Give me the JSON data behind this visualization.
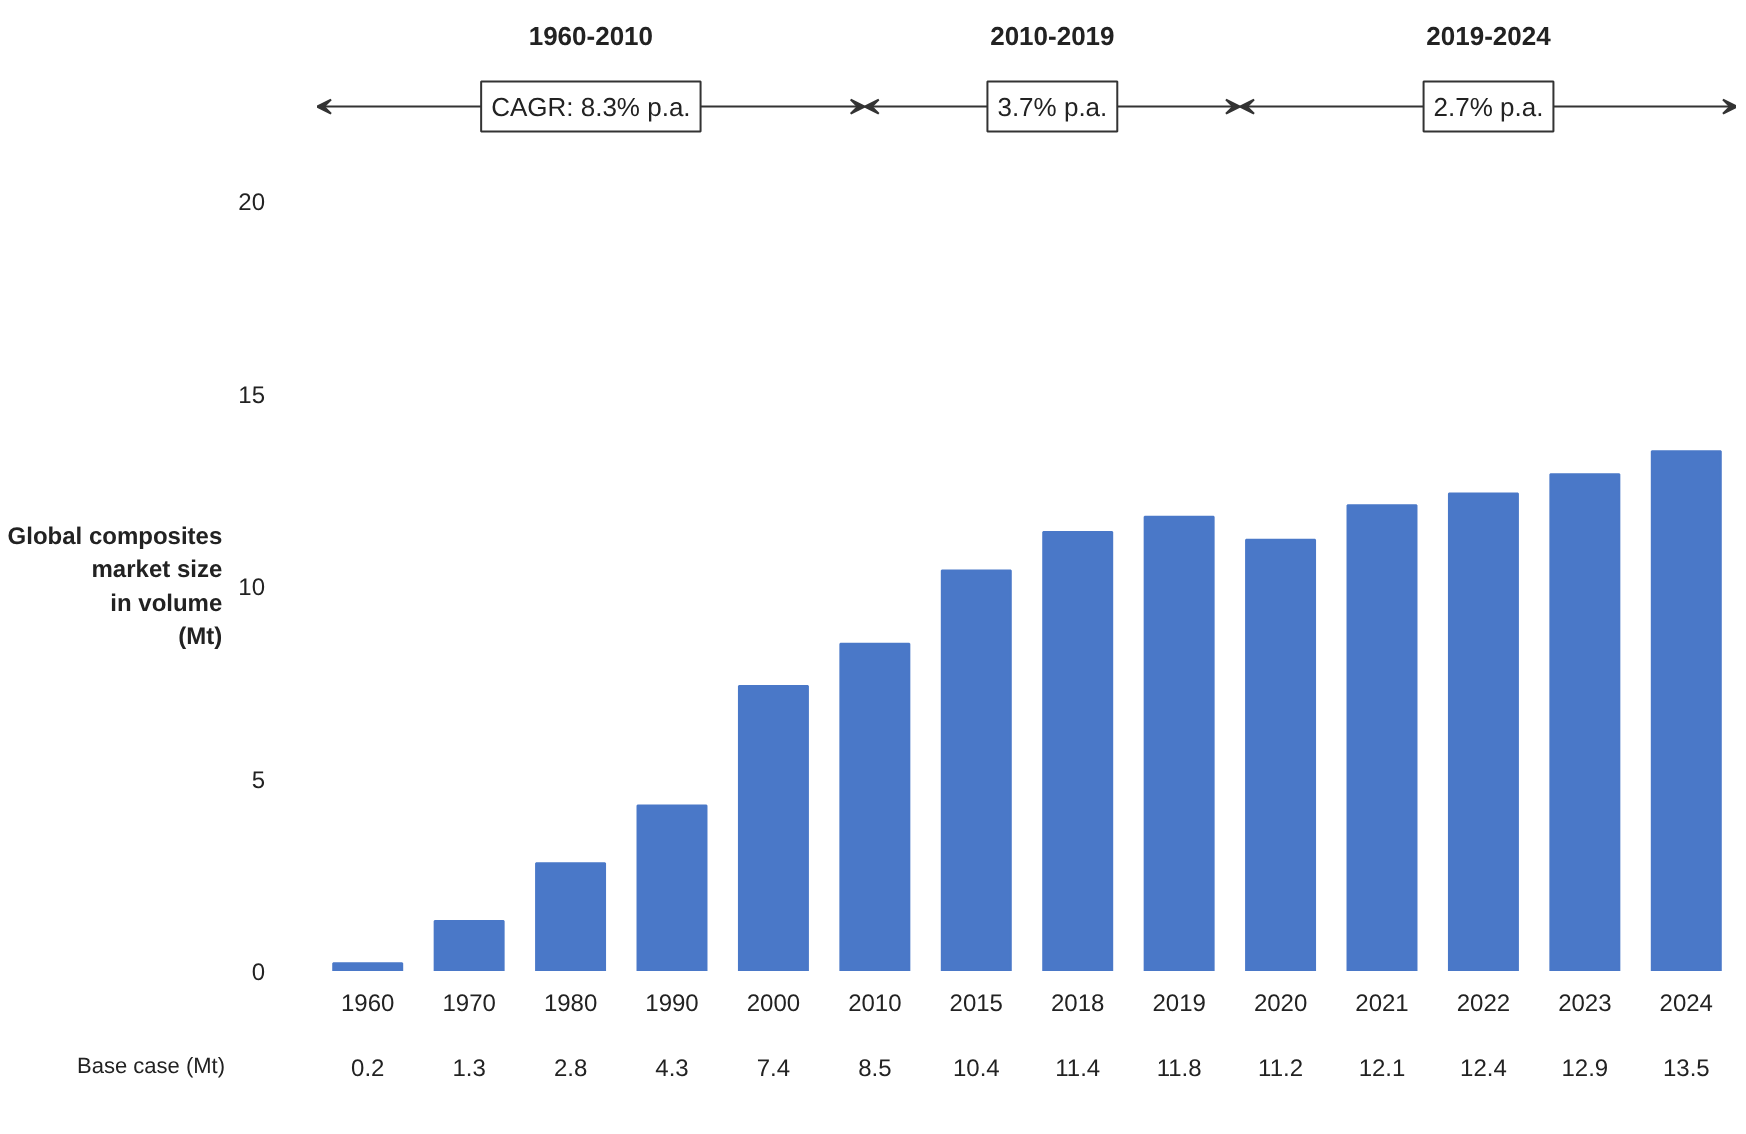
{
  "chart_data": {
    "type": "bar",
    "ylabel": "Global composites market size in volume (Mt)",
    "categories": [
      "1960",
      "1970",
      "1980",
      "1990",
      "2000",
      "2010",
      "2015",
      "2018",
      "2019",
      "2020",
      "2021",
      "2022",
      "2023",
      "2024"
    ],
    "values": [
      0.2,
      1.3,
      2.8,
      4.3,
      7.4,
      8.5,
      10.4,
      11.4,
      11.8,
      11.2,
      12.1,
      12.4,
      12.9,
      13.5
    ],
    "color": "#4a78c8",
    "ylim": [
      0,
      20
    ],
    "yticks": [
      0,
      5,
      10,
      15,
      20
    ],
    "grid": false,
    "data_labels": true,
    "annotations": [
      "1960-2010",
      "CAGR: 8.3% p.a.",
      "2010-2019",
      "3.7% p.a.",
      "2019-2024",
      "2.7% p.a.",
      "Base case (Mt)"
    ]
  }
}
